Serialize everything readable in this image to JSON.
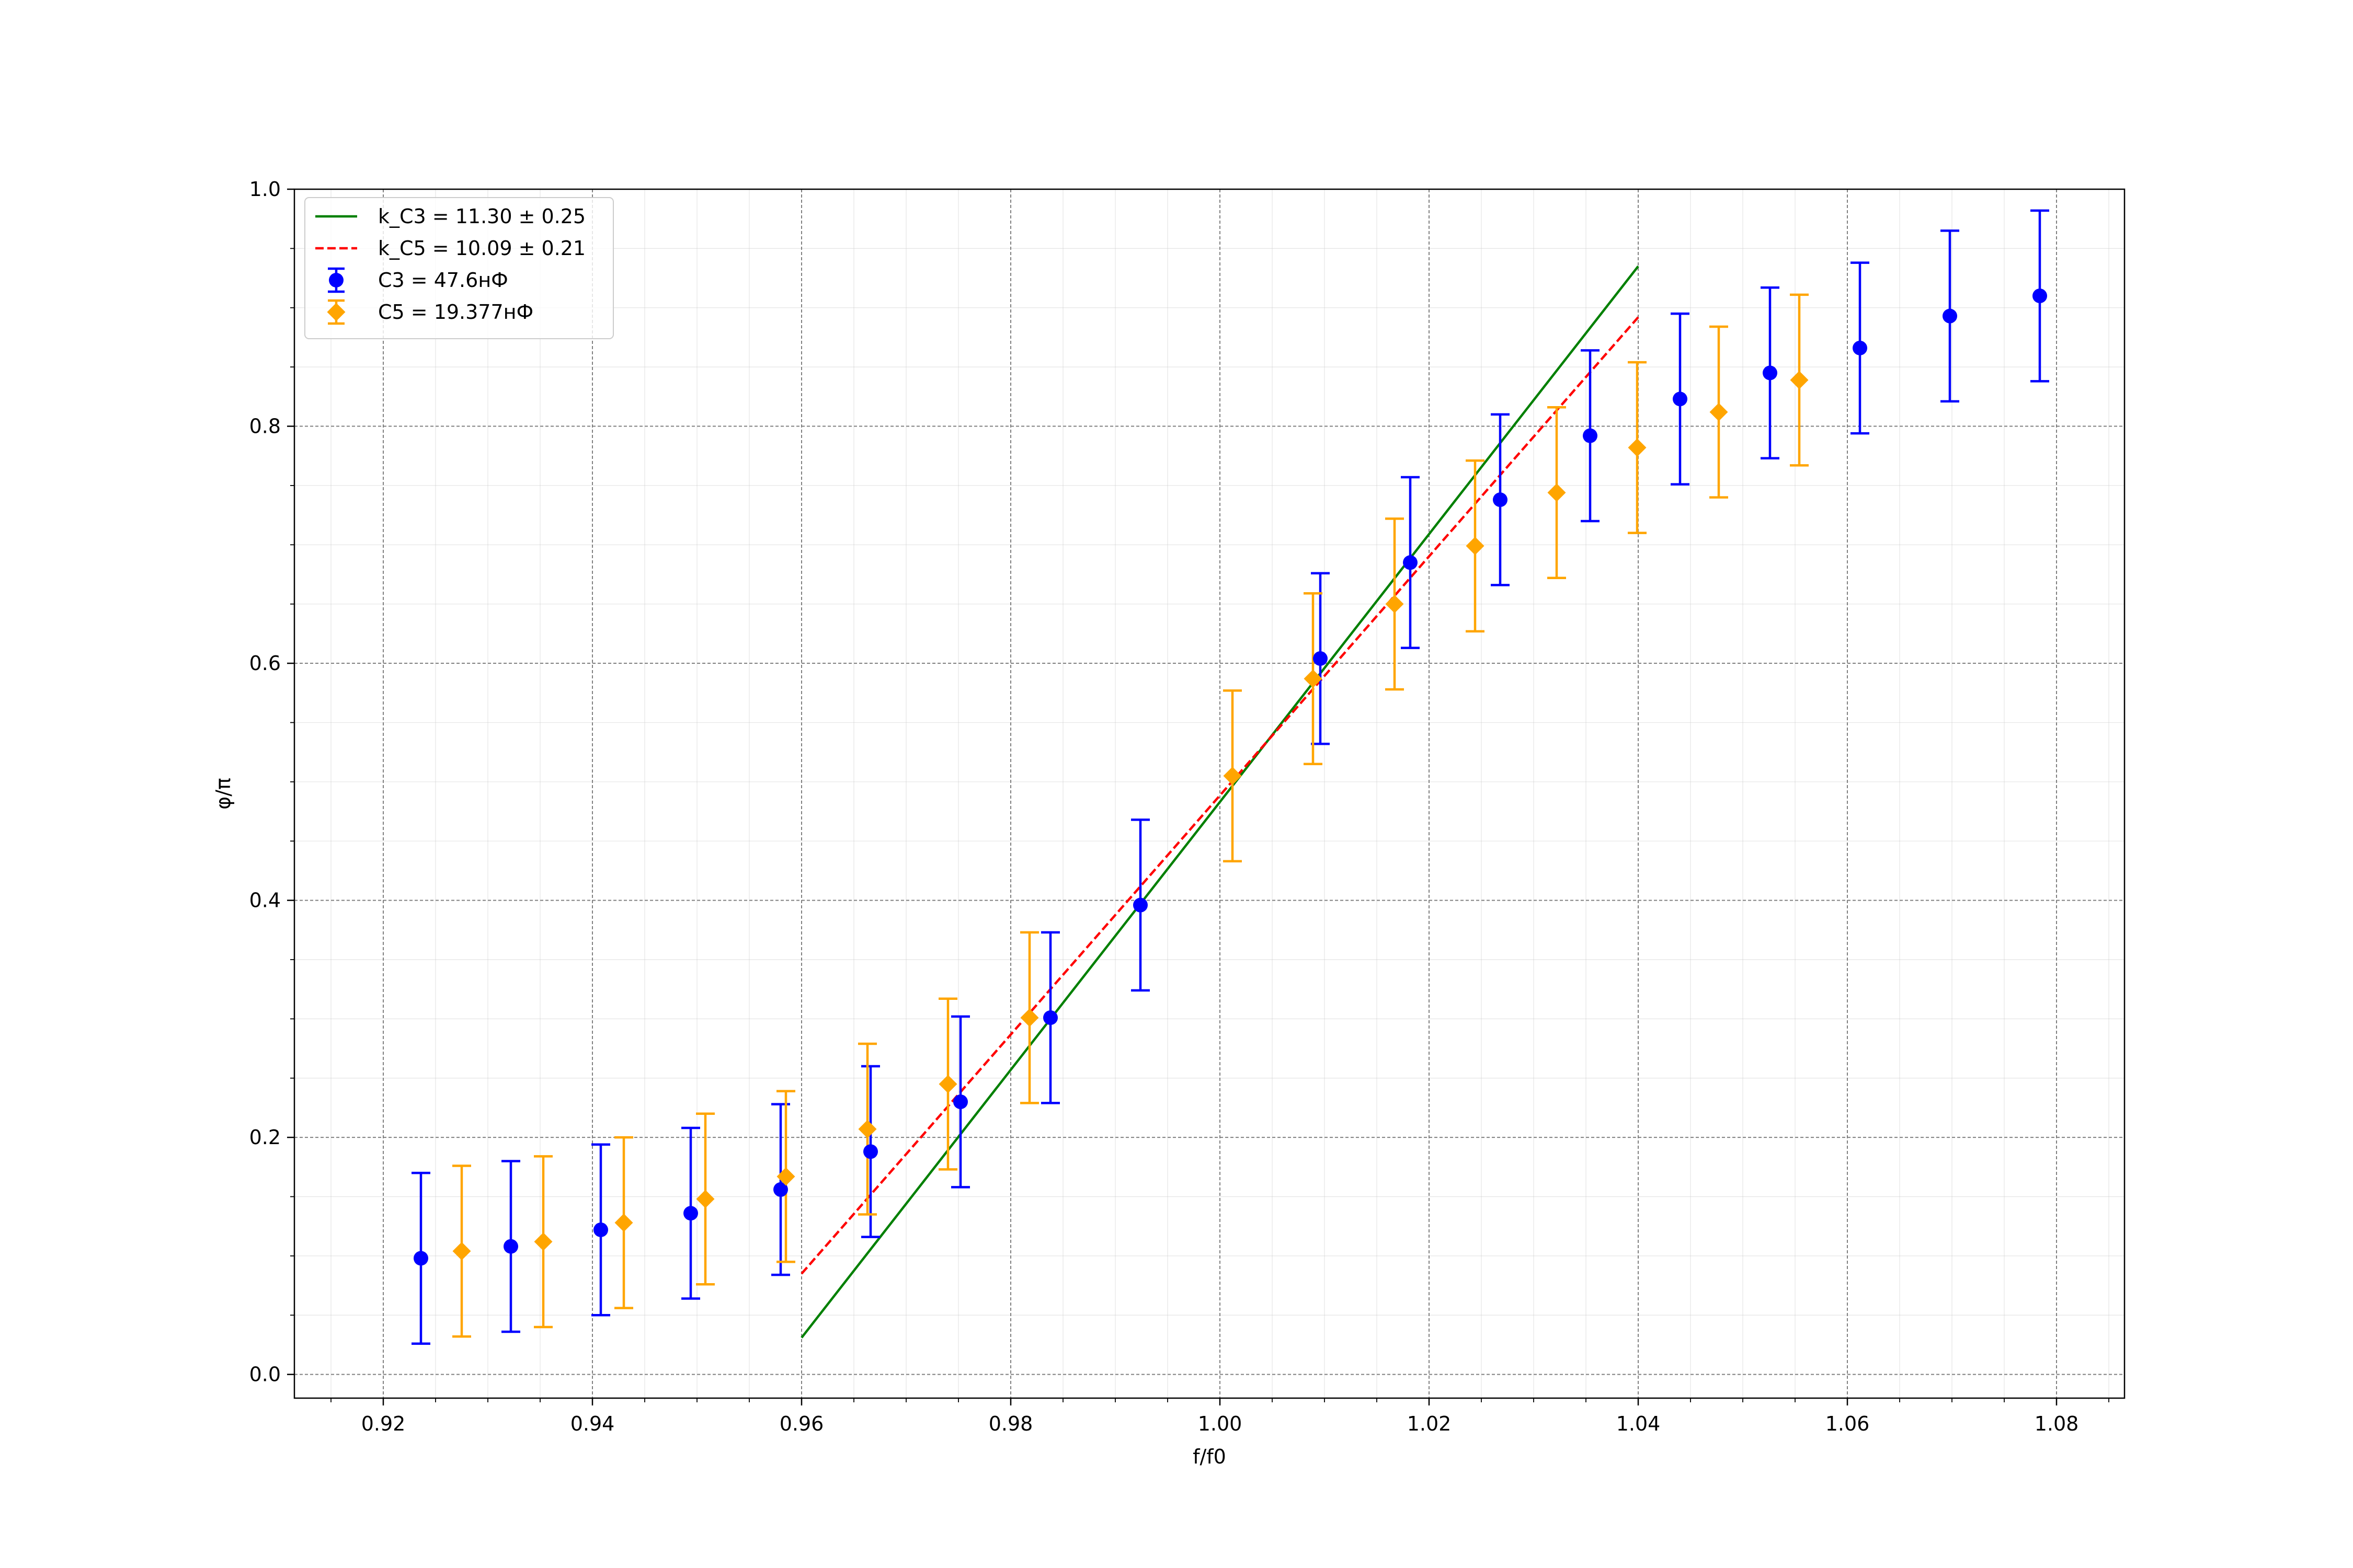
{
  "chart_data": {
    "type": "scatter",
    "xlabel": "f/f0",
    "ylabel": "φ/π",
    "xlim": [
      0.9115,
      1.0865
    ],
    "ylim": [
      -0.02,
      1.0
    ],
    "xticks": [
      "0.92",
      "0.94",
      "0.96",
      "0.98",
      "1.00",
      "1.02",
      "1.04",
      "1.06",
      "1.08"
    ],
    "yticks": [
      "0.0",
      "0.2",
      "0.4",
      "0.6",
      "0.8",
      "1.0"
    ],
    "grid": true,
    "minor_grid": true,
    "legend_position": "top-left",
    "series": [
      {
        "name": "C3 = 47.6нФ",
        "kind": "errorbar",
        "marker": "circle",
        "color": "#0000ff",
        "x": [
          0.9236,
          0.9322,
          0.9408,
          0.9494,
          0.958,
          0.9666,
          0.9752,
          0.9838,
          0.9924,
          1.0096,
          1.0182,
          1.0268,
          1.0354,
          1.044,
          1.0526,
          1.0612,
          1.0698,
          1.0784
        ],
        "y": [
          0.098,
          0.108,
          0.122,
          0.136,
          0.156,
          0.188,
          0.23,
          0.301,
          0.396,
          0.604,
          0.685,
          0.738,
          0.792,
          0.823,
          0.845,
          0.866,
          0.893,
          0.91
        ],
        "yerr": 0.072
      },
      {
        "name": "C5 = 19.377нФ",
        "kind": "errorbar",
        "marker": "diamond",
        "color": "#ffa500",
        "x": [
          0.9275,
          0.9353,
          0.943,
          0.9508,
          0.9585,
          0.9663,
          0.974,
          0.9818,
          1.0012,
          1.0089,
          1.0167,
          1.0244,
          1.0322,
          1.0399,
          1.0477,
          1.0554
        ],
        "y": [
          0.104,
          0.112,
          0.128,
          0.148,
          0.167,
          0.207,
          0.245,
          0.301,
          0.505,
          0.587,
          0.65,
          0.699,
          0.744,
          0.782,
          0.812,
          0.839
        ],
        "yerr": 0.072
      },
      {
        "name": "k_C3 = 11.30 ± 0.25",
        "kind": "line",
        "style": "solid",
        "color": "#008000",
        "x": [
          0.96,
          1.04
        ],
        "y": [
          0.031,
          0.935
        ]
      },
      {
        "name": "k_C5 = 10.09 ± 0.21",
        "kind": "line",
        "style": "dashed",
        "color": "#ff0000",
        "x": [
          0.96,
          1.04
        ],
        "y": [
          0.085,
          0.892
        ]
      }
    ],
    "legend_order": [
      2,
      3,
      0,
      1
    ]
  }
}
